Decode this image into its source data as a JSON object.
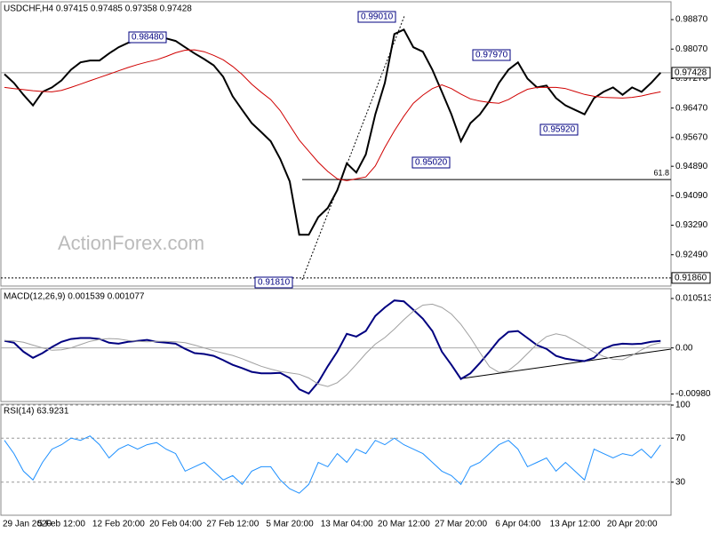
{
  "chart_data": [
    {
      "type": "line",
      "title": "USDCHF,H4  0.97415 0.97485 0.97358 0.97428",
      "watermark": "ActionForex.com",
      "ylim": [
        0.9164,
        0.9933
      ],
      "yticks": [
        {
          "value": 0.9887,
          "label": "0.98870"
        },
        {
          "value": 0.9807,
          "label": "0.98070"
        },
        {
          "value": 0.9727,
          "label": "0.97270"
        },
        {
          "value": 0.9647,
          "label": "0.96470"
        },
        {
          "value": 0.9567,
          "label": "0.95670"
        },
        {
          "value": 0.9489,
          "label": "0.94890"
        },
        {
          "value": 0.9409,
          "label": "0.94090"
        },
        {
          "value": 0.9329,
          "label": "0.93290"
        },
        {
          "value": 0.9249,
          "label": "0.92490"
        }
      ],
      "series": [
        {
          "color": "#000000",
          "values": [
            0.9739,
            0.9715,
            0.9683,
            0.9654,
            0.9691,
            0.9703,
            0.9722,
            0.9751,
            0.9771,
            0.9776,
            0.9776,
            0.9795,
            0.9812,
            0.9824,
            0.9829,
            0.9831,
            0.9836,
            0.9836,
            0.9829,
            0.9812,
            0.9795,
            0.978,
            0.9763,
            0.9732,
            0.9679,
            0.9642,
            0.9606,
            0.9582,
            0.9557,
            0.9509,
            0.9448,
            0.9303,
            0.9303,
            0.9351,
            0.9376,
            0.9424,
            0.9497,
            0.9472,
            0.9521,
            0.963,
            0.9715,
            0.9848,
            0.986,
            0.9812,
            0.98,
            0.9751,
            0.9691,
            0.963,
            0.9557,
            0.9606,
            0.963,
            0.9666,
            0.9715,
            0.9751,
            0.9771,
            0.9727,
            0.9703,
            0.9708,
            0.9674,
            0.9654,
            0.9642,
            0.963,
            0.9674,
            0.9691,
            0.9703,
            0.9683,
            0.9703,
            0.9691,
            0.9715,
            0.9743
          ]
        },
        {
          "color": "#d00000",
          "values": [
            0.9703,
            0.97,
            0.9697,
            0.9694,
            0.9692,
            0.9691,
            0.9695,
            0.9703,
            0.9712,
            0.9721,
            0.973,
            0.9739,
            0.9748,
            0.9757,
            0.9765,
            0.9772,
            0.9778,
            0.9787,
            0.9797,
            0.9804,
            0.9805,
            0.98,
            0.979,
            0.9778,
            0.976,
            0.9738,
            0.9712,
            0.969,
            0.967,
            0.964,
            0.96,
            0.956,
            0.953,
            0.95,
            0.9475,
            0.9455,
            0.945,
            0.9455,
            0.946,
            0.949,
            0.954,
            0.9585,
            0.9625,
            0.966,
            0.9682,
            0.97,
            0.971,
            0.97,
            0.9685,
            0.9672,
            0.9666,
            0.9662,
            0.966,
            0.967,
            0.9685,
            0.9698,
            0.9703,
            0.9703,
            0.9703,
            0.97,
            0.9692,
            0.9684,
            0.9679,
            0.9676,
            0.9675,
            0.9674,
            0.9676,
            0.968,
            0.9686,
            0.9691
          ]
        }
      ],
      "levels": [
        {
          "value": 0.97428,
          "label": "0.97428",
          "style": "current"
        },
        {
          "value": 0.9186,
          "label": "0.91860",
          "style": "dotted"
        },
        {
          "value": 0.9453,
          "label": "61.8",
          "style": "fib"
        }
      ],
      "annotations": [
        "0.98480",
        "0.99010",
        "0.97970",
        "0.95020",
        "0.95920",
        "0.91810"
      ]
    },
    {
      "type": "line",
      "title": "MACD(12,26,9) 0.001539 0.001077",
      "ylim": [
        -0.0114,
        0.0124
      ],
      "zero_line": true,
      "yticks": [
        0.010513,
        {
          "value": 0,
          "label": "0.00"
        },
        -0.009804
      ],
      "series": [
        {
          "color": "#000080",
          "values": [
            0.0015,
            0.0011,
            -0.0008,
            -0.0021,
            -0.0011,
            0.0002,
            0.0013,
            0.0019,
            0.0021,
            0.0021,
            0.0019,
            0.0011,
            0.0009,
            0.0013,
            0.0015,
            0.0017,
            0.0013,
            0.0011,
            0.0009,
            -0.0002,
            -0.0011,
            -0.0013,
            -0.0017,
            -0.0026,
            -0.0036,
            -0.0043,
            -0.0051,
            -0.0054,
            -0.0054,
            -0.0053,
            -0.0064,
            -0.0088,
            -0.0097,
            -0.0073,
            -0.0039,
            -0.0008,
            0.003,
            0.0024,
            0.0036,
            0.0068,
            0.0086,
            0.0101,
            0.0099,
            0.0081,
            0.0062,
            0.0036,
            -0.0008,
            -0.0036,
            -0.0066,
            -0.0054,
            -0.0032,
            -0.0008,
            0.0017,
            0.0034,
            0.0036,
            0.0021,
            0.0006,
            -0.0002,
            -0.0017,
            -0.0023,
            -0.0026,
            -0.0028,
            -0.0021,
            -0.0002,
            0.0006,
            0.0009,
            0.0008,
            0.0009,
            0.0013,
            0.0015
          ]
        },
        {
          "color": "#a0a0a0",
          "values": [
            0.0016,
            0.0015,
            0.0012,
            0.0006,
            0.0,
            -0.0005,
            -0.0004,
            0.0,
            0.0007,
            0.0014,
            0.0018,
            0.002,
            0.0019,
            0.0016,
            0.0014,
            0.0013,
            0.0014,
            0.0014,
            0.0013,
            0.0011,
            0.0006,
            0.0,
            -0.0006,
            -0.0011,
            -0.0016,
            -0.0023,
            -0.0031,
            -0.0039,
            -0.0045,
            -0.005,
            -0.0053,
            -0.0056,
            -0.0064,
            -0.0077,
            -0.0082,
            -0.0074,
            -0.0057,
            -0.0035,
            -0.0012,
            0.0008,
            0.0022,
            0.004,
            0.006,
            0.0078,
            0.0091,
            0.0093,
            0.0086,
            0.0072,
            0.005,
            0.0022,
            -0.001,
            -0.004,
            -0.0052,
            -0.0048,
            -0.0032,
            -0.0012,
            0.0008,
            0.0024,
            0.003,
            0.0026,
            0.0015,
            0.0003,
            -0.0009,
            -0.0018,
            -0.0024,
            -0.0025,
            -0.0016,
            -0.0004,
            0.0006,
            0.0011
          ]
        }
      ]
    },
    {
      "type": "line",
      "title": "RSI(14) 63.9231",
      "ylim": [
        0,
        100
      ],
      "yticks": [
        100,
        70,
        30
      ],
      "grid": true,
      "categories": [
        "29 Jan 2020",
        null,
        null,
        null,
        null,
        null,
        "5 Feb 12:00",
        null,
        null,
        null,
        null,
        null,
        "12 Feb 20:00",
        null,
        null,
        null,
        null,
        null,
        "20 Feb 04:00",
        null,
        null,
        null,
        null,
        null,
        "27 Feb 12:00",
        null,
        null,
        null,
        null,
        null,
        "5 Mar 20:00",
        null,
        null,
        null,
        null,
        null,
        "13 Mar 04:00",
        null,
        null,
        null,
        null,
        null,
        "20 Mar 12:00",
        null,
        null,
        null,
        null,
        null,
        "27 Mar 20:00",
        null,
        null,
        null,
        null,
        null,
        "6 Apr 04:00",
        null,
        null,
        null,
        null,
        null,
        "13 Apr 12:00",
        null,
        null,
        null,
        null,
        null,
        "20 Apr 20:00",
        null,
        null,
        null
      ],
      "series": [
        {
          "color": "#1e90ff",
          "values": [
            68,
            56,
            40,
            32,
            48,
            60,
            64,
            70,
            68,
            72,
            64,
            52,
            60,
            64,
            60,
            64,
            66,
            60,
            56,
            40,
            44,
            48,
            40,
            32,
            36,
            28,
            40,
            44,
            44,
            32,
            24,
            20,
            28,
            48,
            44,
            56,
            48,
            60,
            56,
            68,
            64,
            70,
            64,
            60,
            56,
            48,
            40,
            36,
            28,
            44,
            48,
            56,
            64,
            68,
            60,
            44,
            48,
            52,
            40,
            48,
            40,
            32,
            60,
            56,
            52,
            56,
            54,
            60,
            52,
            63.9
          ]
        }
      ]
    }
  ]
}
